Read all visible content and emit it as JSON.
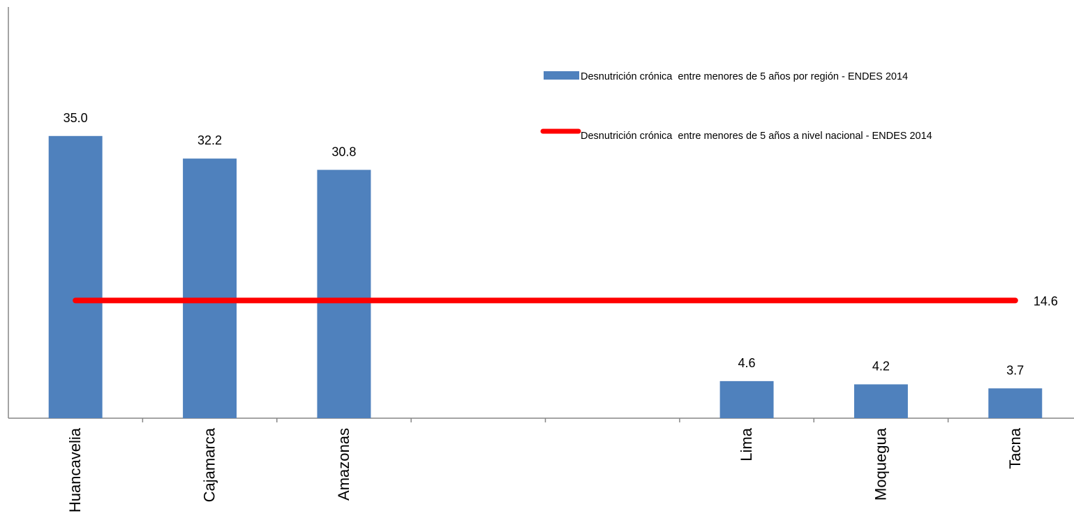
{
  "chart_data": {
    "type": "bar",
    "categories": [
      "Huancavelia",
      "Cajamarca",
      "Amazonas",
      "",
      "",
      "Lima",
      "Moquegua",
      "Tacna"
    ],
    "series": [
      {
        "name": "Desnutrición crónica  entre menores de 5 años por región - ENDES 2014",
        "type": "bar",
        "values": [
          35.0,
          32.2,
          30.8,
          null,
          null,
          4.6,
          4.2,
          3.7
        ],
        "labels": [
          "35.0",
          "32.2",
          "30.8",
          "",
          "",
          "4.6",
          "4.2",
          "3.7"
        ],
        "color": "#4f81bd"
      },
      {
        "name": "Desnutrición crónica  entre menores de 5 años a nivel nacional - ENDES 2014",
        "type": "line",
        "value": 14.6,
        "label": "14.6",
        "color": "#ff0000"
      }
    ],
    "ylim": [
      0,
      51
    ],
    "grid": false,
    "legend": "top-right",
    "title": "",
    "xlabel": "",
    "ylabel": ""
  }
}
